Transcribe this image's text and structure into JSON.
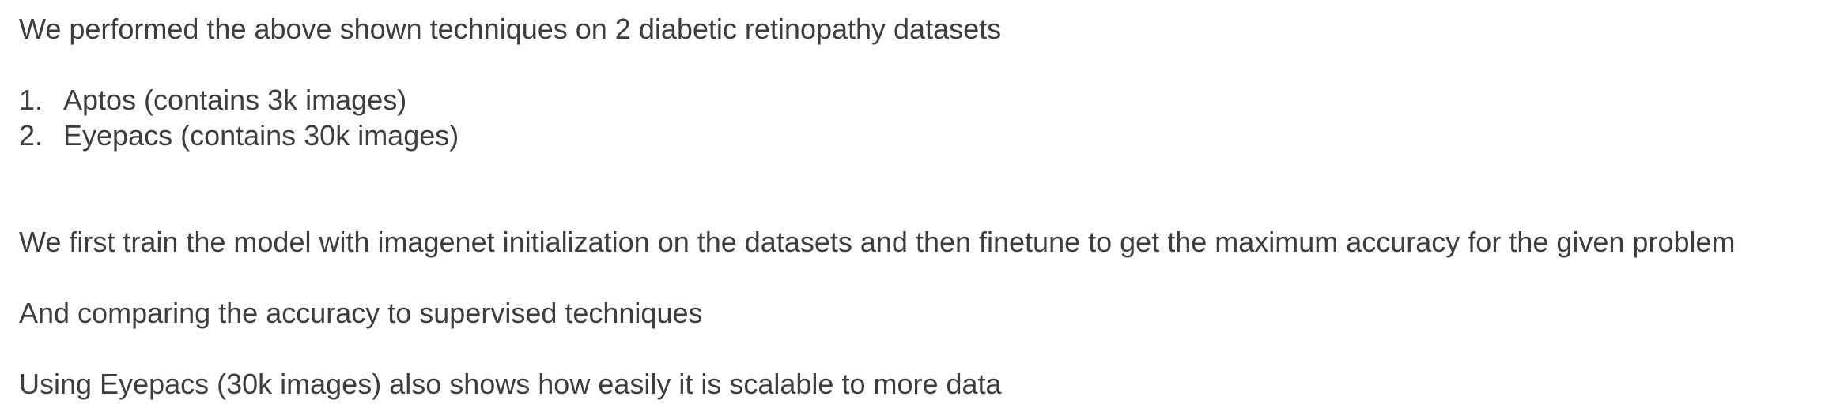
{
  "document": {
    "intro": "We performed the above shown techniques on 2 diabetic retinopathy datasets",
    "datasets": [
      {
        "num": "1.",
        "text": "Aptos (contains 3k images)"
      },
      {
        "num": "2.",
        "text": "Eyepacs (contains 30k images)"
      }
    ],
    "paragraphs": [
      "We first train the model with imagenet initialization on the datasets and then finetune to get the maximum accuracy for the given problem",
      "And comparing the accuracy to supervised techniques",
      "Using Eyepacs (30k images) also shows how easily it is scalable to more data"
    ]
  }
}
